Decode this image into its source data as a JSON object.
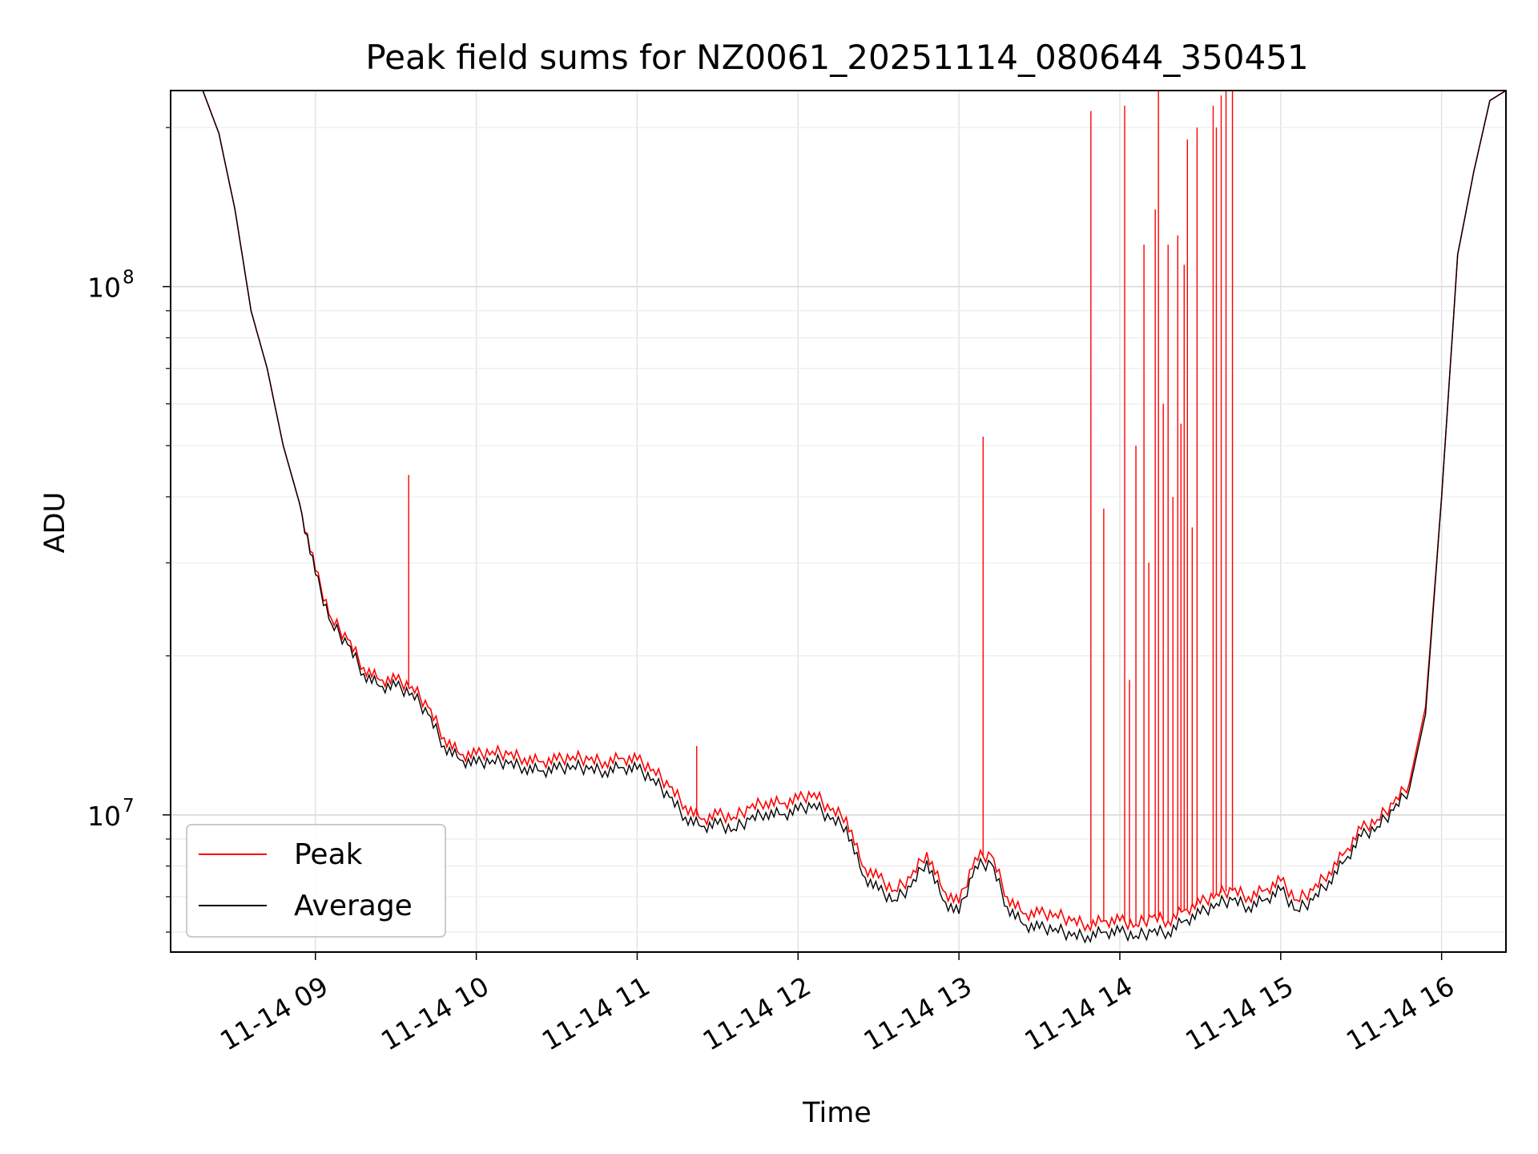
{
  "chart_data": {
    "type": "line",
    "title": "Peak field sums for NZ0061_20251114_080644_350451",
    "xlabel": "Time",
    "ylabel": "ADU",
    "x_range": [
      "11-14 08:06",
      "11-14 16:24"
    ],
    "ylim": [
      5500000,
      235000000
    ],
    "y_scale": "log",
    "grid": true,
    "legend_position": "lower-left",
    "x_ticks": [
      "11-14 09",
      "11-14 10",
      "11-14 11",
      "11-14 12",
      "11-14 13",
      "11-14 14",
      "11-14 15",
      "11-14 16"
    ],
    "y_ticks": [
      {
        "value": 10000000,
        "base": "10",
        "exp": "7"
      },
      {
        "value": 100000000,
        "base": "10",
        "exp": "8"
      }
    ],
    "x_hours": [
      8.15,
      8.3,
      8.4,
      8.5,
      8.6,
      8.7,
      8.8,
      8.9,
      9.0,
      9.1,
      9.2,
      9.3,
      9.4,
      9.5,
      9.6,
      9.7,
      9.8,
      9.9,
      10.0,
      10.1,
      10.2,
      10.3,
      10.4,
      10.5,
      10.6,
      10.7,
      10.8,
      10.9,
      11.0,
      11.1,
      11.2,
      11.3,
      11.4,
      11.5,
      11.6,
      11.7,
      11.8,
      11.9,
      12.0,
      12.1,
      12.2,
      12.3,
      12.4,
      12.5,
      12.6,
      12.7,
      12.8,
      12.9,
      13.0,
      13.1,
      13.2,
      13.3,
      13.4,
      13.5,
      13.6,
      13.7,
      13.8,
      13.9,
      14.0,
      14.1,
      14.2,
      14.3,
      14.4,
      14.5,
      14.6,
      14.7,
      14.8,
      14.9,
      15.0,
      15.1,
      15.2,
      15.3,
      15.4,
      15.5,
      15.6,
      15.7,
      15.8,
      15.9,
      16.0,
      16.1,
      16.2,
      16.3,
      16.4
    ],
    "series": [
      {
        "name": "Peak",
        "color": "#ff0000",
        "values": [
          235000000,
          235000000,
          195000000,
          140000000,
          90000000,
          70000000,
          50000000,
          39000000,
          29000000,
          23500000,
          21500000,
          19000000,
          18000000,
          18000000,
          17500000,
          16000000,
          14000000,
          13000000,
          13000000,
          13200000,
          13000000,
          12800000,
          12600000,
          12700000,
          12900000,
          12700000,
          12600000,
          12800000,
          12700000,
          12200000,
          11300000,
          10400000,
          9800000,
          10000000,
          9900000,
          10300000,
          10600000,
          10500000,
          10700000,
          11000000,
          10200000,
          9900000,
          8000000,
          7600000,
          7200000,
          7600000,
          8500000,
          7200000,
          6800000,
          8300000,
          8400000,
          7000000,
          6500000,
          6500000,
          6500000,
          6300000,
          6200000,
          6300000,
          6300000,
          6200000,
          6400000,
          6300000,
          6600000,
          6800000,
          7100000,
          7200000,
          7000000,
          7200000,
          7500000,
          6900000,
          7200000,
          7800000,
          8500000,
          9400000,
          9800000,
          10500000,
          11500000,
          16000000,
          40000000,
          115000000,
          165000000,
          225000000,
          235000000
        ]
      },
      {
        "name": "Average",
        "color": "#000000",
        "values": [
          235000000,
          235000000,
          195000000,
          140000000,
          90000000,
          70000000,
          50000000,
          39000000,
          28500000,
          23000000,
          21000000,
          18500000,
          17500000,
          17500000,
          17000000,
          15500000,
          13500000,
          12700000,
          12500000,
          12700000,
          12500000,
          12300000,
          12100000,
          12200000,
          12400000,
          12200000,
          12100000,
          12300000,
          12200000,
          11700000,
          10800000,
          9900000,
          9500000,
          9600000,
          9400000,
          9800000,
          10100000,
          10000000,
          10200000,
          10500000,
          9800000,
          9500000,
          7700000,
          7200000,
          6900000,
          7300000,
          8200000,
          6900000,
          6500000,
          8000000,
          8100000,
          6700000,
          6200000,
          6100000,
          6100000,
          5900000,
          5900000,
          6000000,
          6000000,
          5900000,
          6000000,
          6000000,
          6300000,
          6500000,
          6800000,
          6900000,
          6700000,
          6900000,
          7200000,
          6600000,
          6900000,
          7500000,
          8200000,
          9100000,
          9500000,
          10200000,
          11200000,
          15500000,
          40000000,
          115000000,
          165000000,
          225000000,
          235000000
        ]
      }
    ],
    "spikes": [
      {
        "x": 9.58,
        "y": 44000000
      },
      {
        "x": 11.37,
        "y": 13500000
      },
      {
        "x": 13.15,
        "y": 52000000
      },
      {
        "x": 13.82,
        "y": 215000000
      },
      {
        "x": 13.9,
        "y": 38000000
      },
      {
        "x": 14.03,
        "y": 220000000
      },
      {
        "x": 14.06,
        "y": 18000000
      },
      {
        "x": 14.1,
        "y": 50000000
      },
      {
        "x": 14.15,
        "y": 120000000
      },
      {
        "x": 14.18,
        "y": 30000000
      },
      {
        "x": 14.22,
        "y": 140000000
      },
      {
        "x": 14.24,
        "y": 235000000
      },
      {
        "x": 14.27,
        "y": 60000000
      },
      {
        "x": 14.3,
        "y": 120000000
      },
      {
        "x": 14.33,
        "y": 40000000
      },
      {
        "x": 14.36,
        "y": 125000000
      },
      {
        "x": 14.38,
        "y": 55000000
      },
      {
        "x": 14.4,
        "y": 110000000
      },
      {
        "x": 14.42,
        "y": 190000000
      },
      {
        "x": 14.45,
        "y": 35000000
      },
      {
        "x": 14.48,
        "y": 200000000
      },
      {
        "x": 14.58,
        "y": 220000000
      },
      {
        "x": 14.6,
        "y": 200000000
      },
      {
        "x": 14.63,
        "y": 230000000
      },
      {
        "x": 14.66,
        "y": 235000000
      },
      {
        "x": 14.7,
        "y": 235000000
      }
    ]
  }
}
